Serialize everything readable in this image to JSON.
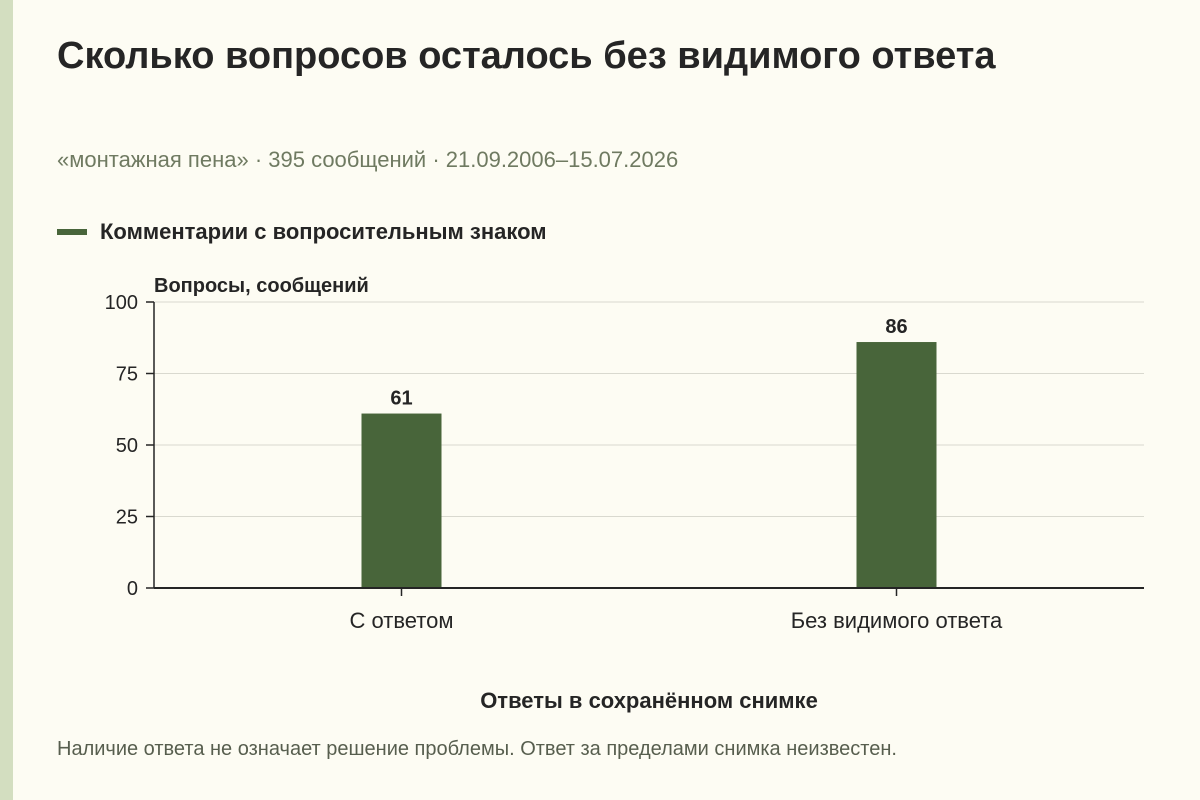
{
  "header": {
    "title": "Сколько вопросов осталось без видимого ответа",
    "subtitle": "«монтажная пена» · 395 сообщений · 21.09.2006–15.07.2026"
  },
  "legend": {
    "label": "Комментарии с вопросительным знаком"
  },
  "chart_data": {
    "type": "bar",
    "categories": [
      "С ответом",
      "Без видимого ответа"
    ],
    "series": [
      {
        "name": "Комментарии с вопросительным знаком",
        "values": [
          61,
          86
        ],
        "color": "#48653a"
      }
    ],
    "value_labels": [
      "61",
      "86"
    ],
    "ylabel": "Вопросы, сообщений",
    "xlabel": "Ответы в сохранённом снимке",
    "ylim": [
      0,
      100
    ],
    "yticks": [
      0,
      25,
      50,
      75,
      100
    ],
    "ytick_labels": [
      "0",
      "25",
      "50",
      "75",
      "100"
    ],
    "grid": true,
    "legend_position": "top-left"
  },
  "footnote": {
    "text": "Наличие ответа не означает решение проблемы. Ответ за пределами снимка неизвестен."
  }
}
